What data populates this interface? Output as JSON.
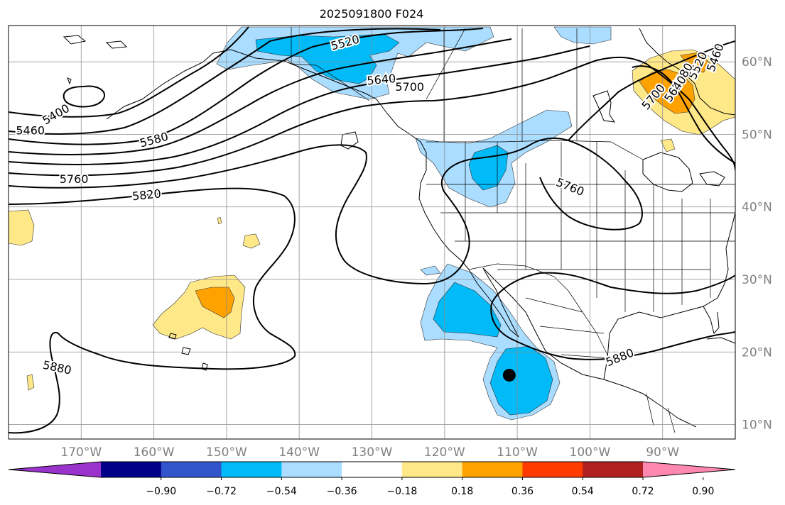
{
  "title": "2025091800 F024",
  "map": {
    "lon_range": [
      -180,
      -80
    ],
    "lat_range": [
      8,
      65
    ],
    "lon_ticks": [
      {
        "lon": -170,
        "label": "170°W"
      },
      {
        "lon": -160,
        "label": "160°W"
      },
      {
        "lon": -150,
        "label": "150°W"
      },
      {
        "lon": -140,
        "label": "140°W"
      },
      {
        "lon": -130,
        "label": "130°W"
      },
      {
        "lon": -120,
        "label": "120°W"
      },
      {
        "lon": -110,
        "label": "110°W"
      },
      {
        "lon": -100,
        "label": "100°W"
      },
      {
        "lon": -90,
        "label": "90°W"
      }
    ],
    "lat_ticks": [
      {
        "lat": 60,
        "label": "60°N"
      },
      {
        "lat": 50,
        "label": "50°N"
      },
      {
        "lat": 40,
        "label": "40°N"
      },
      {
        "lat": 30,
        "label": "30°N"
      },
      {
        "lat": 20,
        "label": "20°N"
      },
      {
        "lat": 10,
        "label": "10°N"
      }
    ],
    "gridlines": true,
    "contour_labels": [
      {
        "text": "5400",
        "lon": -173.5,
        "lat": 52.8,
        "rot": -30
      },
      {
        "text": "5460",
        "lon": -177,
        "lat": 50.6,
        "rot": 0
      },
      {
        "text": "5580",
        "lon": -160,
        "lat": 49.3,
        "rot": -15
      },
      {
        "text": "5760",
        "lon": -171,
        "lat": 43.9,
        "rot": 0
      },
      {
        "text": "5820",
        "lon": -161,
        "lat": 41.7,
        "rot": -6
      },
      {
        "text": "5520",
        "lon": -133.7,
        "lat": 62.7,
        "rot": -15
      },
      {
        "text": "5640",
        "lon": -128.7,
        "lat": 57.6,
        "rot": -5
      },
      {
        "text": "5700",
        "lon": -124.8,
        "lat": 56.6,
        "rot": 0
      },
      {
        "text": "5760",
        "lon": -102.7,
        "lat": 42.8,
        "rot": 22
      },
      {
        "text": "5880",
        "lon": -173.3,
        "lat": 17.9,
        "rot": 12
      },
      {
        "text": "5880",
        "lon": -95.9,
        "lat": 19.3,
        "rot": -22
      },
      {
        "text": "5460",
        "lon": -82.8,
        "lat": 60.6,
        "rot": -70
      },
      {
        "text": "5520",
        "lon": -85.2,
        "lat": 59.5,
        "rot": -65
      },
      {
        "text": "5580",
        "lon": -87.3,
        "lat": 58.0,
        "rot": -60
      },
      {
        "text": "5640",
        "lon": -88.3,
        "lat": 56.3,
        "rot": -55
      },
      {
        "text": "5700",
        "lon": -91.3,
        "lat": 55.2,
        "rot": -50
      }
    ],
    "storm_marker": {
      "lon": -111.1,
      "lat": 16.8
    }
  },
  "colorbar": {
    "colors": [
      "#9933cc",
      "#000088",
      "#3355cc",
      "#00bbf8",
      "#aaddff",
      "#ffffff",
      "#ffe888",
      "#ffa200",
      "#ff3b00",
      "#b02020",
      "#ff88b0"
    ],
    "tick_labels": [
      "−0.90",
      "−0.72",
      "−0.54",
      "−0.36",
      "−0.18",
      "0.18",
      "0.36",
      "0.54",
      "0.72",
      "0.90"
    ]
  }
}
